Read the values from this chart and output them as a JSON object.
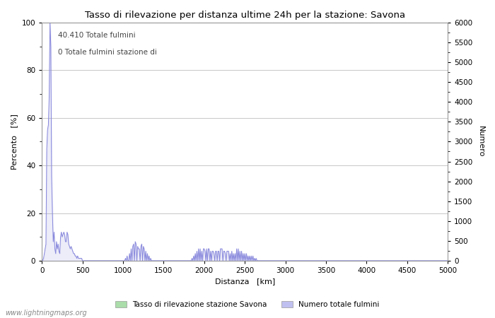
{
  "title": "Tasso di rilevazione per distanza ultime 24h per la stazione: Savona",
  "xlabel": "Distanza   [km]",
  "ylabel_left": "Percento   [%]",
  "ylabel_right": "Numero",
  "annotation1": "40.410 Totale fulmini",
  "annotation2": "0 Totale fulmini stazione di",
  "legend_label1": "Tasso di rilevazione stazione Savona",
  "legend_label2": "Numero totale fulmini",
  "watermark": "www.lightningmaps.org",
  "xlim": [
    0,
    5000
  ],
  "ylim_left": [
    0,
    100
  ],
  "ylim_right": [
    0,
    6000
  ],
  "xticks": [
    0,
    500,
    1000,
    1500,
    2000,
    2500,
    3000,
    3500,
    4000,
    4500,
    5000
  ],
  "yticks_left": [
    0,
    20,
    40,
    60,
    80,
    100
  ],
  "yticks_right": [
    0,
    500,
    1000,
    1500,
    2000,
    2500,
    3000,
    3500,
    4000,
    4500,
    5000,
    5500,
    6000
  ],
  "line_color": "#8888dd",
  "fill_color": "#c8c8f0",
  "legend_color1": "#aaddaa",
  "legend_color2": "#c0c0f0",
  "bg_color": "#ffffff",
  "grid_color": "#b0b0b0"
}
